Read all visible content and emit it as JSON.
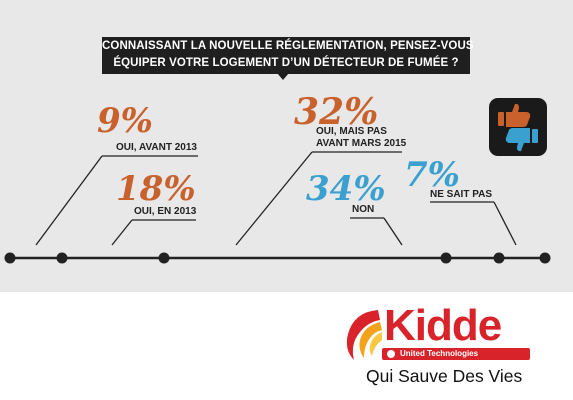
{
  "question": {
    "line1": "CONNAISSANT LA NOUVELLE RÉGLEMENTATION, PENSEZ-VOUS",
    "line2": "ÉQUIPER VOTRE LOGEMENT D’UN DÉTECTEUR DE FUMÉE ?"
  },
  "colors": {
    "orange": "#c8612c",
    "blue": "#3aa0cf",
    "dark": "#222222",
    "band": "#e8e8e8"
  },
  "chart_data": {
    "type": "table",
    "series": [
      {
        "percent": "9%",
        "value": 9,
        "label_lines": [
          "OUI, AVANT 2013"
        ],
        "color": "#c8612c"
      },
      {
        "percent": "18%",
        "value": 18,
        "label_lines": [
          "OUI, EN 2013"
        ],
        "color": "#c8612c"
      },
      {
        "percent": "32%",
        "value": 32,
        "label_lines": [
          "OUI, MAIS PAS",
          "AVANT MARS 2015"
        ],
        "color": "#c8612c"
      },
      {
        "percent": "34%",
        "value": 34,
        "label_lines": [
          "NON"
        ],
        "color": "#3aa0cf"
      },
      {
        "percent": "7%",
        "value": 7,
        "label_lines": [
          "NE SAIT PAS"
        ],
        "color": "#3aa0cf"
      }
    ]
  },
  "icons": {
    "thumbs": "thumbs-up-down-icon"
  },
  "logo": {
    "brand": "Kidde",
    "parent": "United Technologies",
    "tagline": "Qui Sauve Des Vies"
  }
}
